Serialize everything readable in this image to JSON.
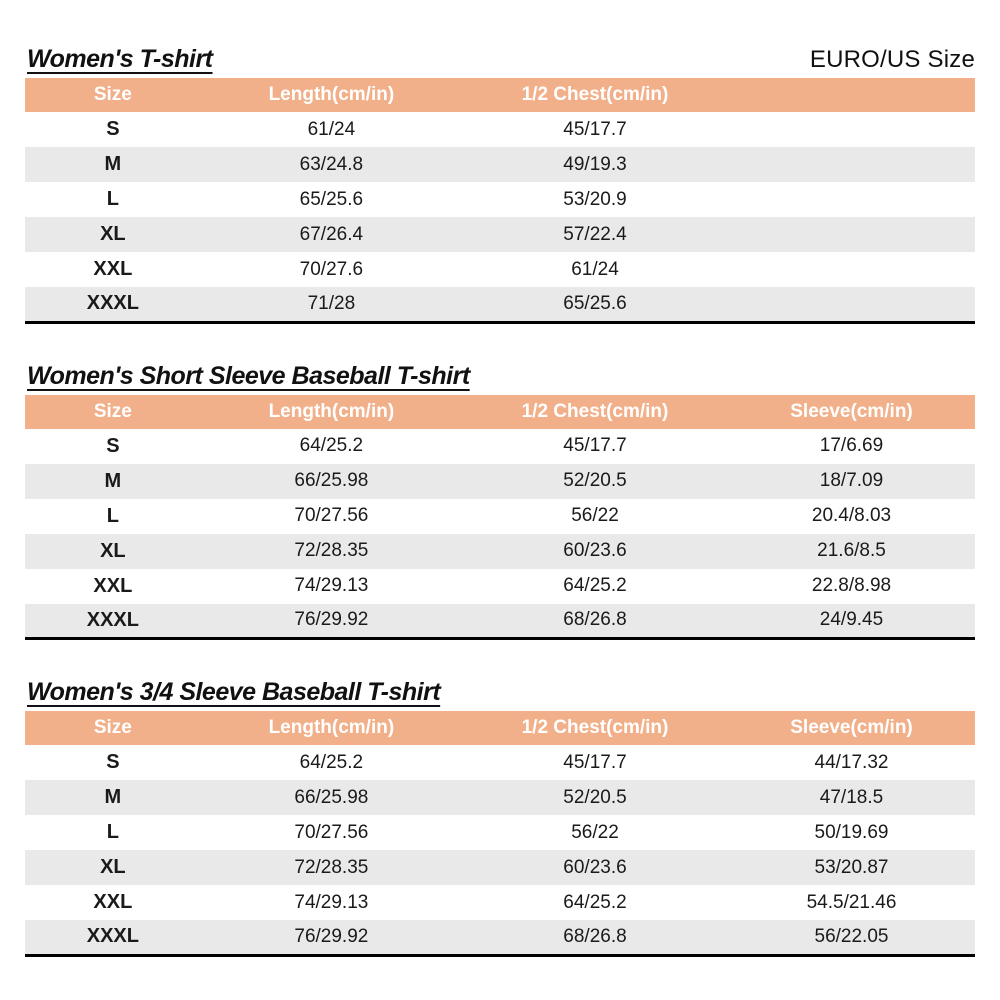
{
  "page": {
    "size_system_label": "EURO/US Size"
  },
  "colors": {
    "header_bg": "#F1B089",
    "header_text": "#FFFFFF",
    "alt_row_bg": "#E9E9E9",
    "row_bg": "#FFFFFF",
    "text": "#1A1A1A",
    "table_bottom_border": "#000000"
  },
  "tables": [
    {
      "title": "Women's T-shirt",
      "columns": [
        "Size",
        "Length(cm/in)",
        "1/2 Chest(cm/in)",
        ""
      ],
      "rows": [
        [
          "S",
          "61/24",
          "45/17.7",
          ""
        ],
        [
          "M",
          "63/24.8",
          "49/19.3",
          ""
        ],
        [
          "L",
          "65/25.6",
          "53/20.9",
          ""
        ],
        [
          "XL",
          "67/26.4",
          "57/22.4",
          ""
        ],
        [
          "XXL",
          "70/27.6",
          "61/24",
          ""
        ],
        [
          "XXXL",
          "71/28",
          "65/25.6",
          ""
        ]
      ]
    },
    {
      "title": "Women's Short Sleeve Baseball T-shirt",
      "columns": [
        "Size",
        "Length(cm/in)",
        "1/2 Chest(cm/in)",
        "Sleeve(cm/in)"
      ],
      "rows": [
        [
          "S",
          "64/25.2",
          "45/17.7",
          "17/6.69"
        ],
        [
          "M",
          "66/25.98",
          "52/20.5",
          "18/7.09"
        ],
        [
          "L",
          "70/27.56",
          "56/22",
          "20.4/8.03"
        ],
        [
          "XL",
          "72/28.35",
          "60/23.6",
          "21.6/8.5"
        ],
        [
          "XXL",
          "74/29.13",
          "64/25.2",
          "22.8/8.98"
        ],
        [
          "XXXL",
          "76/29.92",
          "68/26.8",
          "24/9.45"
        ]
      ]
    },
    {
      "title": "Women's 3/4 Sleeve Baseball T-shirt",
      "columns": [
        "Size",
        "Length(cm/in)",
        "1/2 Chest(cm/in)",
        "Sleeve(cm/in)"
      ],
      "rows": [
        [
          "S",
          "64/25.2",
          "45/17.7",
          "44/17.32"
        ],
        [
          "M",
          "66/25.98",
          "52/20.5",
          "47/18.5"
        ],
        [
          "L",
          "70/27.56",
          "56/22",
          "50/19.69"
        ],
        [
          "XL",
          "72/28.35",
          "60/23.6",
          "53/20.87"
        ],
        [
          "XXL",
          "74/29.13",
          "64/25.2",
          "54.5/21.46"
        ],
        [
          "XXXL",
          "76/29.92",
          "68/26.8",
          "56/22.05"
        ]
      ]
    }
  ]
}
